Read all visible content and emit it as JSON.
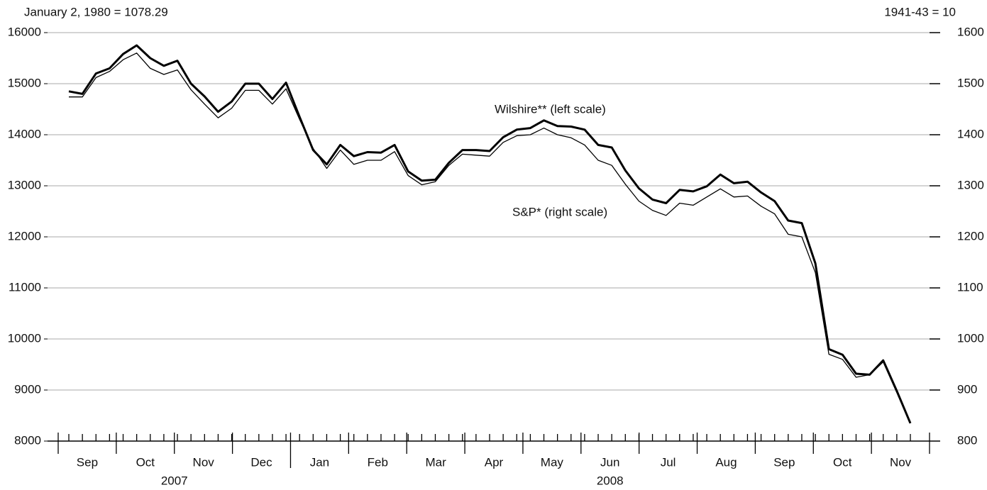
{
  "chart_data": {
    "type": "line",
    "left_note": "January 2, 1980 = 1078.29",
    "right_note": "1941-43 = 10",
    "months": [
      "Sep",
      "Oct",
      "Nov",
      "Dec",
      "Jan",
      "Feb",
      "Mar",
      "Apr",
      "May",
      "Jun",
      "Jul",
      "Aug",
      "Sep",
      "Oct",
      "Nov"
    ],
    "years": [
      "2007",
      "2008"
    ],
    "ylim": [
      8000,
      16000
    ],
    "yticks": [
      8000,
      9000,
      10000,
      11000,
      12000,
      13000,
      14000,
      15000,
      16000
    ],
    "y2lim": [
      800,
      1600
    ],
    "y2ticks": [
      800,
      900,
      1000,
      1100,
      1200,
      1300,
      1400,
      1500,
      1600
    ],
    "grid": true,
    "annotations": [
      "Wilshire** (left scale)",
      "S&P* (right scale)"
    ],
    "series": [
      {
        "name": "Wilshire",
        "color": "#000000",
        "width": 3,
        "values": [
          14850,
          14800,
          15200,
          15300,
          15580,
          15750,
          15500,
          15350,
          15450,
          15000,
          14750,
          14450,
          14650,
          15000,
          15000,
          14700,
          15020,
          14350,
          13700,
          13420,
          13800,
          13580,
          13660,
          13650,
          13800,
          13280,
          13100,
          13120,
          13450,
          13700,
          13700,
          13680,
          13950,
          14100,
          14130,
          14280,
          14170,
          14160,
          14100,
          13800,
          13750,
          13300,
          12950,
          12730,
          12660,
          12920,
          12890,
          12990,
          13220,
          13050,
          13080,
          12870,
          12700,
          12320,
          12270,
          11480,
          9800,
          9690,
          9320,
          9300,
          9580,
          8980,
          8350
        ]
      },
      {
        "name": "S&P",
        "color": "#000000",
        "width": 1.3,
        "axis": "y2",
        "values": [
          1474,
          1474,
          1512,
          1524,
          1547,
          1560,
          1530,
          1518,
          1527,
          1488,
          1460,
          1433,
          1452,
          1487,
          1487,
          1460,
          1490,
          1430,
          1373,
          1334,
          1370,
          1342,
          1350,
          1350,
          1367,
          1320,
          1302,
          1308,
          1340,
          1362,
          1360,
          1358,
          1385,
          1398,
          1400,
          1413,
          1400,
          1394,
          1380,
          1350,
          1340,
          1303,
          1270,
          1252,
          1242,
          1266,
          1262,
          1278,
          1294,
          1278,
          1280,
          1260,
          1245,
          1205,
          1200,
          1130,
          970,
          960,
          925,
          930,
          955,
          895,
          835
        ]
      }
    ]
  }
}
